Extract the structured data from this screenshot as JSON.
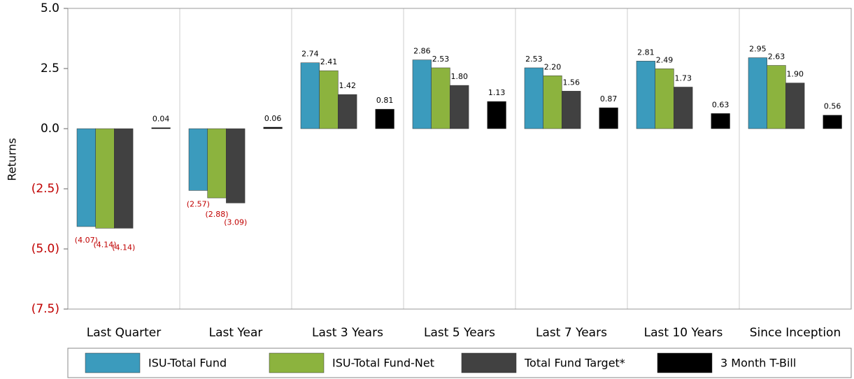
{
  "chart_data": {
    "type": "bar",
    "y_label": "Returns",
    "categories": [
      "Last Quarter",
      "Last Year",
      "Last 3 Years",
      "Last 5 Years",
      "Last 7 Years",
      "Last 10 Years",
      "Since Inception"
    ],
    "series": [
      {
        "name": "ISU-Total Fund",
        "color": "#3b9bbd",
        "values": [
          -4.07,
          -2.57,
          2.74,
          2.86,
          2.53,
          2.81,
          2.95
        ],
        "value_labels": [
          "(4.07)",
          "(2.57)",
          "2.74",
          "2.86",
          "2.53",
          "2.81",
          "2.95"
        ]
      },
      {
        "name": "ISU-Total Fund-Net",
        "color": "#8cb33e",
        "values": [
          -4.14,
          -2.88,
          2.41,
          2.53,
          2.2,
          2.49,
          2.63
        ],
        "value_labels": [
          "(4.14)",
          "(2.88)",
          "2.41",
          "2.53",
          "2.20",
          "2.49",
          "2.63"
        ]
      },
      {
        "name": "Total Fund Target*",
        "color": "#414141",
        "values": [
          -4.14,
          -3.09,
          1.42,
          1.8,
          1.56,
          1.73,
          1.9
        ],
        "value_labels": [
          "(4.14)",
          "(3.09)",
          "1.42",
          "1.80",
          "1.56",
          "1.73",
          "1.90"
        ]
      },
      {
        "name": "3 Month T-Bill",
        "color": "#000000",
        "values": [
          0.04,
          0.06,
          0.81,
          1.13,
          0.87,
          0.63,
          0.56
        ],
        "value_labels": [
          "0.04",
          "0.06",
          "0.81",
          "1.13",
          "0.87",
          "0.63",
          "0.56"
        ]
      }
    ],
    "ylim": [
      -7.5,
      5
    ],
    "yticks": [
      {
        "value": 5,
        "label": "5.0"
      },
      {
        "value": 2.5,
        "label": "2.5"
      },
      {
        "value": 0,
        "label": "0.0"
      },
      {
        "value": -2.5,
        "label": "(2.5)"
      },
      {
        "value": -5,
        "label": "(5.0)"
      },
      {
        "value": -7.5,
        "label": "(7.5)"
      }
    ],
    "negative_color": "#c00000",
    "legend": "bottom"
  }
}
